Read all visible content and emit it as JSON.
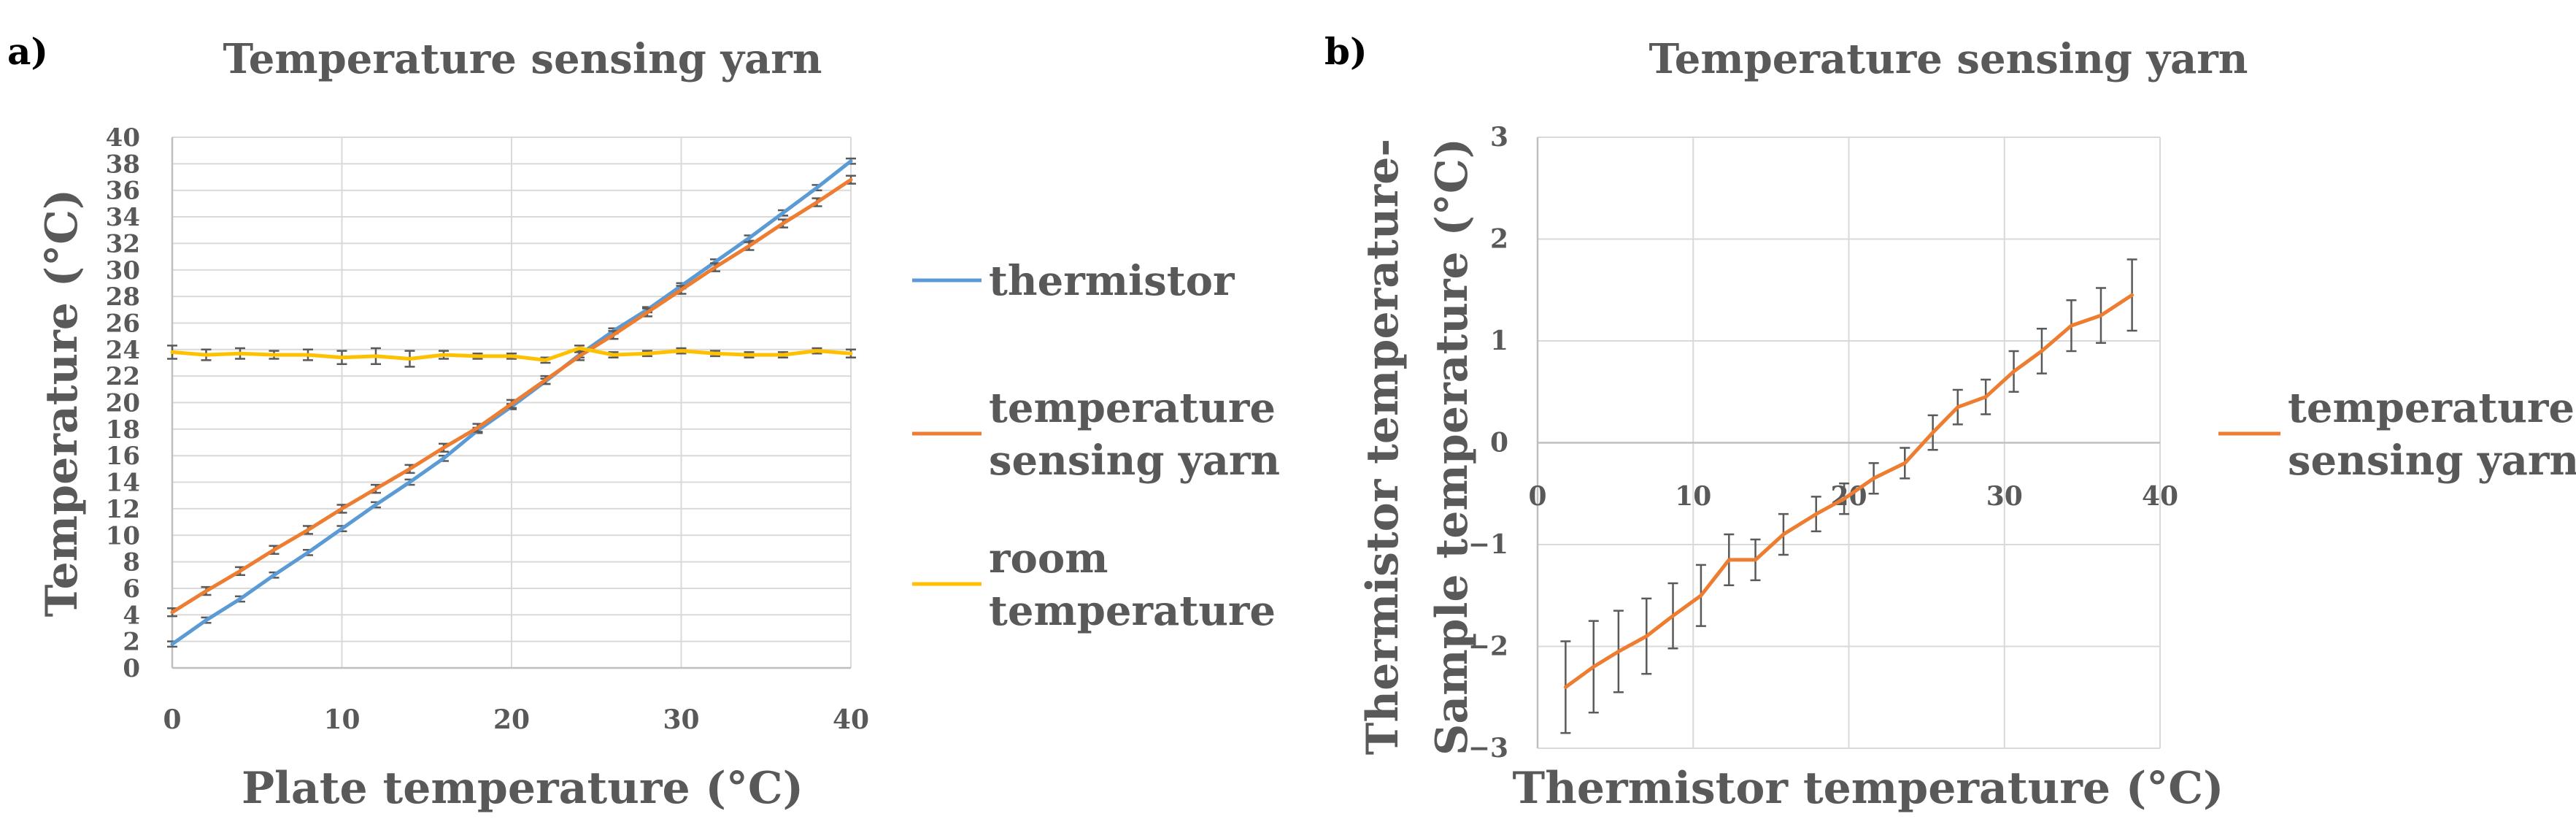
{
  "chart_data": [
    {
      "panel_label": "a)",
      "type": "line",
      "title": "Temperature sensing yarn",
      "xlabel": "Plate temperature (°C)",
      "ylabel": "Temperature (°C)",
      "xlim": [
        0,
        40
      ],
      "ylim": [
        0,
        40
      ],
      "x_ticks": [
        0,
        10,
        20,
        30,
        40
      ],
      "y_ticks": [
        0,
        2,
        4,
        6,
        8,
        10,
        12,
        14,
        16,
        18,
        20,
        22,
        24,
        26,
        28,
        30,
        32,
        34,
        36,
        38,
        40
      ],
      "grid": true,
      "legend_position": "right",
      "series": [
        {
          "name": "thermistor",
          "color": "#5b9bd5",
          "x": [
            0,
            2,
            4,
            6,
            8,
            10,
            12,
            14,
            16,
            18,
            20,
            22,
            24,
            26,
            28,
            30,
            32,
            34,
            36,
            38,
            40
          ],
          "y": [
            1.8,
            3.6,
            5.2,
            7.0,
            8.7,
            10.5,
            12.3,
            14.0,
            15.8,
            17.9,
            19.7,
            21.6,
            23.6,
            25.4,
            27.0,
            28.8,
            30.6,
            32.4,
            34.3,
            36.2,
            38.2
          ],
          "err": [
            0.2,
            0.2,
            0.2,
            0.2,
            0.2,
            0.2,
            0.2,
            0.2,
            0.2,
            0.2,
            0.2,
            0.2,
            0.2,
            0.2,
            0.2,
            0.2,
            0.2,
            0.2,
            0.2,
            0.2,
            0.2
          ]
        },
        {
          "name": "temperature sensing yarn",
          "color": "#ed7d31",
          "x": [
            0,
            2,
            4,
            6,
            8,
            10,
            12,
            14,
            16,
            18,
            20,
            22,
            24,
            26,
            28,
            30,
            32,
            34,
            36,
            38,
            40
          ],
          "y": [
            4.2,
            5.8,
            7.3,
            8.9,
            10.4,
            12.0,
            13.5,
            15.0,
            16.6,
            18.1,
            19.9,
            21.7,
            23.5,
            25.1,
            26.8,
            28.5,
            30.2,
            31.8,
            33.5,
            35.1,
            36.8
          ],
          "err": [
            0.3,
            0.3,
            0.3,
            0.3,
            0.3,
            0.3,
            0.3,
            0.3,
            0.3,
            0.3,
            0.3,
            0.3,
            0.3,
            0.3,
            0.3,
            0.3,
            0.3,
            0.3,
            0.3,
            0.3,
            0.3
          ]
        },
        {
          "name": "room temperature",
          "color": "#ffc000",
          "x": [
            0,
            2,
            4,
            6,
            8,
            10,
            12,
            14,
            16,
            18,
            20,
            22,
            24,
            26,
            28,
            30,
            32,
            34,
            36,
            38,
            40
          ],
          "y": [
            23.8,
            23.6,
            23.7,
            23.6,
            23.6,
            23.4,
            23.5,
            23.3,
            23.6,
            23.5,
            23.5,
            23.2,
            24.1,
            23.6,
            23.7,
            23.9,
            23.7,
            23.6,
            23.6,
            23.9,
            23.7
          ],
          "err": [
            0.5,
            0.4,
            0.4,
            0.3,
            0.4,
            0.5,
            0.6,
            0.6,
            0.3,
            0.2,
            0.2,
            0.2,
            0.2,
            0.2,
            0.2,
            0.2,
            0.2,
            0.2,
            0.2,
            0.2,
            0.3
          ]
        }
      ]
    },
    {
      "panel_label": "b)",
      "type": "line",
      "title": "Temperature sensing yarn",
      "xlabel": "Thermistor temperature (°C)",
      "ylabel_lines": [
        "Thermistor temperature-",
        "Sample temperature (°C)"
      ],
      "xlim": [
        0,
        40
      ],
      "ylim": [
        -3,
        3
      ],
      "x_ticks": [
        0,
        10,
        20,
        30,
        40
      ],
      "y_ticks": [
        -3,
        -2,
        -1,
        0,
        1,
        2,
        3
      ],
      "grid": true,
      "legend_position": "right",
      "series": [
        {
          "name": "temperature sensing yarn",
          "color": "#ed7d31",
          "x": [
            1.8,
            3.6,
            5.2,
            7.0,
            8.7,
            10.5,
            12.3,
            14.0,
            15.8,
            17.9,
            19.7,
            21.6,
            23.6,
            25.4,
            27.0,
            28.8,
            30.6,
            32.4,
            34.3,
            36.2,
            38.2
          ],
          "y": [
            -2.4,
            -2.2,
            -2.05,
            -1.9,
            -1.7,
            -1.5,
            -1.15,
            -1.15,
            -0.9,
            -0.7,
            -0.55,
            -0.35,
            -0.2,
            0.1,
            0.35,
            0.45,
            0.7,
            0.9,
            1.15,
            1.25,
            1.45
          ],
          "err": [
            0.45,
            0.45,
            0.4,
            0.37,
            0.32,
            0.3,
            0.25,
            0.2,
            0.2,
            0.17,
            0.15,
            0.15,
            0.15,
            0.17,
            0.17,
            0.17,
            0.2,
            0.22,
            0.25,
            0.27,
            0.35
          ]
        }
      ]
    }
  ]
}
